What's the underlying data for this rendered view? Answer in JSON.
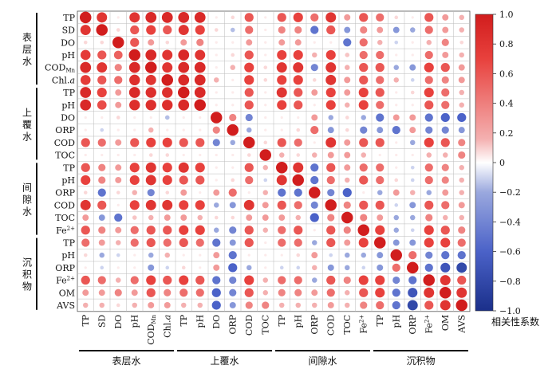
{
  "chart_data": {
    "type": "heatmap",
    "variables": [
      "TP",
      "SD",
      "DO",
      "pH",
      "COD_Mn",
      "Chl.a",
      "TP",
      "pH",
      "DO",
      "ORP",
      "COD",
      "TOC",
      "TP",
      "pH",
      "ORP",
      "COD",
      "TOC",
      "Fe2+",
      "TP",
      "pH",
      "ORP",
      "Fe2+",
      "OM",
      "AVS"
    ],
    "row_labels": [
      "TP",
      "SD",
      "DO",
      "pH",
      "CODMn",
      "Chl.a",
      "TP",
      "pH",
      "DO",
      "ORP",
      "COD",
      "TOC",
      "TP",
      "pH",
      "ORP",
      "COD",
      "TOC",
      "Fe2+",
      "TP",
      "pH",
      "ORP",
      "Fe2+",
      "OM",
      "AVS"
    ],
    "col_labels": [
      "TP",
      "SD",
      "DO",
      "pH",
      "CODMn",
      "Chl.a",
      "TP",
      "pH",
      "DO",
      "ORP",
      "COD",
      "TOC",
      "TP",
      "pH",
      "ORP",
      "COD",
      "TOC",
      "Fe2+",
      "TP",
      "pH",
      "ORP",
      "Fe2+",
      "OM",
      "AVS"
    ],
    "groups": [
      {
        "name": "表层水",
        "row_label": "表层水",
        "start": 0,
        "end": 5
      },
      {
        "name": "上覆水",
        "row_label": "上覆水",
        "start": 6,
        "end": 11
      },
      {
        "name": "间隙水",
        "row_label": "间隙水",
        "start": 12,
        "end": 17
      },
      {
        "name": "沉积物",
        "row_label": "沉积物",
        "start": 18,
        "end": 23
      }
    ],
    "colorbar": {
      "label": "相关性系数",
      "range": [
        -1,
        1
      ],
      "ticks": [
        "1.0",
        "0.8",
        "0.6",
        "0.4",
        "0.2",
        "0",
        "−0.2",
        "−0.4",
        "−0.6",
        "−0.8",
        "−1.0"
      ],
      "colors": [
        "#1a2f8a",
        "#4b62c8",
        "#9aa8de",
        "#ffffff",
        "#f4a0a0",
        "#e8413d",
        "#d11d1d"
      ]
    },
    "matrix": [
      [
        1,
        0.8,
        0.05,
        0.8,
        0.9,
        0.9,
        0.9,
        0.9,
        0.05,
        0.1,
        0.6,
        0.05,
        0.6,
        0.7,
        0.5,
        0.8,
        0.3,
        0.6,
        0.5,
        0.1,
        0.05,
        0.6,
        0.3,
        0.2
      ],
      [
        0.8,
        1,
        0.1,
        0.6,
        0.7,
        0.6,
        0.8,
        0.7,
        0.1,
        -0.15,
        0.5,
        0.05,
        0.4,
        0.4,
        -0.5,
        0.6,
        -0.3,
        0.4,
        0.3,
        -0.3,
        -0.2,
        0.5,
        0.3,
        0.2
      ],
      [
        0.1,
        0.1,
        1,
        0.6,
        0.3,
        0.1,
        0.3,
        0.4,
        0.05,
        0.05,
        0.3,
        0.05,
        0.3,
        0.3,
        0.05,
        0.05,
        -0.5,
        0.5,
        0.2,
        -0.1,
        0.05,
        0.2,
        0.4,
        0.1
      ],
      [
        0.75,
        0.6,
        0.55,
        1,
        0.9,
        0.8,
        0.9,
        0.8,
        0.05,
        0.1,
        0.6,
        0.05,
        0.7,
        0.7,
        0.2,
        0.7,
        0.15,
        0.5,
        0.5,
        0.05,
        0.05,
        0.5,
        0.3,
        0.2
      ],
      [
        0.9,
        0.8,
        0.4,
        0.9,
        1,
        0.8,
        0.9,
        0.9,
        0.05,
        0.2,
        0.7,
        0.1,
        0.8,
        0.8,
        -0.4,
        0.8,
        0.2,
        0.6,
        0.6,
        -0.2,
        -0.3,
        0.7,
        0.6,
        0.3
      ],
      [
        0.75,
        0.6,
        0.5,
        0.85,
        0.8,
        1,
        0.9,
        0.9,
        0.2,
        0.05,
        0.7,
        0.1,
        0.7,
        0.7,
        0.1,
        0.8,
        0.3,
        0.6,
        0.5,
        0.2,
        -0.1,
        0.5,
        0.4,
        0.3
      ],
      [
        0.9,
        0.7,
        0.3,
        0.9,
        0.85,
        0.85,
        1,
        0.9,
        0.05,
        0.05,
        0.6,
        0.05,
        0.8,
        0.6,
        0.3,
        0.7,
        0.3,
        0.7,
        0.6,
        0.05,
        0.1,
        0.7,
        0.5,
        0.2
      ],
      [
        0.9,
        0.65,
        0.3,
        0.85,
        0.85,
        0.85,
        0.9,
        1,
        0.05,
        0.05,
        0.6,
        0.05,
        0.7,
        0.6,
        0.05,
        0.7,
        0.2,
        0.7,
        0.5,
        0.05,
        0.05,
        0.6,
        0.5,
        0.2
      ],
      [
        0.05,
        0.05,
        0.1,
        0.05,
        0.05,
        -0.15,
        0.05,
        0.05,
        1,
        0.4,
        -0.4,
        0.05,
        0.05,
        0.05,
        0.3,
        -0.2,
        0.1,
        -0.2,
        -0.5,
        0.3,
        0.3,
        -0.5,
        -0.6,
        -0.6
      ],
      [
        0.05,
        -0.1,
        0.05,
        0.05,
        0.2,
        0.05,
        0.05,
        0.05,
        0.4,
        1,
        -0.2,
        0.05,
        0.05,
        0.1,
        0.5,
        -0.3,
        0.1,
        -0.4,
        -0.3,
        -0.5,
        0.3,
        -0.4,
        -0.4,
        -0.3
      ],
      [
        0.6,
        0.5,
        0.3,
        0.6,
        0.7,
        0.7,
        0.6,
        0.6,
        -0.4,
        -0.2,
        1,
        0.1,
        0.6,
        0.5,
        0.05,
        0.8,
        0.3,
        0.6,
        0.6,
        0.05,
        -0.2,
        0.7,
        0.6,
        0.4
      ],
      [
        0.05,
        0.05,
        0.05,
        0.05,
        0.1,
        0.1,
        0.05,
        0.05,
        0.05,
        0.05,
        0.1,
        1,
        0.2,
        0.1,
        0.2,
        0.3,
        0.3,
        0.2,
        0.05,
        0.05,
        0.05,
        0.2,
        0.2,
        0.4
      ],
      [
        0.6,
        0.4,
        0.3,
        0.7,
        0.8,
        0.7,
        0.8,
        0.7,
        0.05,
        0.05,
        0.6,
        0.2,
        1,
        0.8,
        -0.5,
        0.6,
        0.3,
        0.5,
        0.5,
        0.05,
        -0.1,
        0.5,
        0.4,
        0.2
      ],
      [
        0.7,
        0.4,
        0.3,
        0.7,
        0.8,
        0.7,
        0.6,
        0.6,
        0.05,
        0.1,
        0.5,
        -0.1,
        0.8,
        1,
        -0.5,
        0.5,
        0.2,
        0.6,
        0.5,
        0.1,
        -0.1,
        0.5,
        0.4,
        0.2
      ],
      [
        0.1,
        -0.5,
        0.1,
        0.2,
        -0.4,
        0.1,
        0.3,
        0.05,
        0.3,
        0.5,
        0.05,
        0.2,
        -0.5,
        -0.5,
        1,
        -0.4,
        -0.6,
        0.05,
        -0.2,
        0.3,
        0.2,
        -0.2,
        0.3,
        0.2
      ],
      [
        0.8,
        0.6,
        0.05,
        0.7,
        0.8,
        0.8,
        0.7,
        0.7,
        -0.2,
        -0.3,
        0.8,
        0.3,
        0.6,
        0.5,
        -0.4,
        1,
        0.4,
        0.6,
        0.6,
        -0.1,
        -0.3,
        0.6,
        0.5,
        0.3
      ],
      [
        0.3,
        -0.3,
        -0.5,
        0.15,
        0.2,
        0.3,
        0.3,
        0.2,
        0.1,
        0.1,
        0.3,
        0.3,
        0.3,
        0.2,
        -0.6,
        0.4,
        1,
        0.4,
        0.3,
        -0.2,
        -0.2,
        0.4,
        0.2,
        0.2
      ],
      [
        0.6,
        0.4,
        0.3,
        0.5,
        0.6,
        0.6,
        0.7,
        0.7,
        -0.2,
        -0.4,
        0.6,
        0.2,
        0.5,
        0.6,
        0.05,
        0.6,
        0.4,
        1,
        0.7,
        -0.2,
        -0.1,
        0.7,
        0.6,
        0.4
      ],
      [
        0.5,
        0.3,
        0.2,
        0.5,
        0.6,
        0.5,
        0.6,
        0.5,
        -0.5,
        -0.3,
        0.6,
        0.05,
        0.5,
        0.5,
        -0.2,
        0.6,
        0.3,
        0.7,
        1,
        -0.3,
        -0.3,
        0.7,
        0.7,
        0.5
      ],
      [
        0.1,
        -0.2,
        -0.1,
        0.05,
        -0.2,
        0.2,
        0.05,
        0.05,
        0.3,
        -0.5,
        0.05,
        0.05,
        0.05,
        0.1,
        0.3,
        -0.1,
        -0.2,
        -0.2,
        -0.3,
        1,
        0.5,
        -0.4,
        -0.5,
        -0.5
      ],
      [
        0.05,
        -0.1,
        0.05,
        0.05,
        -0.3,
        -0.1,
        0.1,
        0.05,
        0.3,
        -0.6,
        -0.2,
        0.05,
        -0.1,
        -0.1,
        0.2,
        -0.3,
        -0.2,
        -0.1,
        -0.3,
        0.5,
        1,
        -0.5,
        -0.7,
        -0.8
      ],
      [
        0.6,
        0.5,
        0.2,
        0.5,
        0.7,
        0.6,
        0.7,
        0.6,
        -0.5,
        -0.4,
        0.7,
        0.2,
        0.5,
        0.5,
        -0.2,
        0.6,
        0.4,
        0.7,
        0.7,
        -0.4,
        -0.5,
        1,
        0.8,
        0.6
      ],
      [
        0.3,
        0.3,
        0.4,
        0.3,
        0.6,
        0.4,
        0.5,
        0.5,
        -0.6,
        -0.4,
        0.6,
        0.2,
        0.4,
        0.4,
        0.3,
        0.5,
        0.2,
        0.6,
        0.7,
        -0.5,
        -0.7,
        0.8,
        1,
        0.8
      ],
      [
        0.2,
        0.2,
        0.1,
        0.2,
        0.3,
        0.3,
        0.2,
        0.2,
        -0.6,
        -0.3,
        0.4,
        0.4,
        0.2,
        0.2,
        0.2,
        0.3,
        0.2,
        0.4,
        0.5,
        -0.5,
        -0.8,
        0.6,
        0.8,
        1
      ]
    ]
  }
}
